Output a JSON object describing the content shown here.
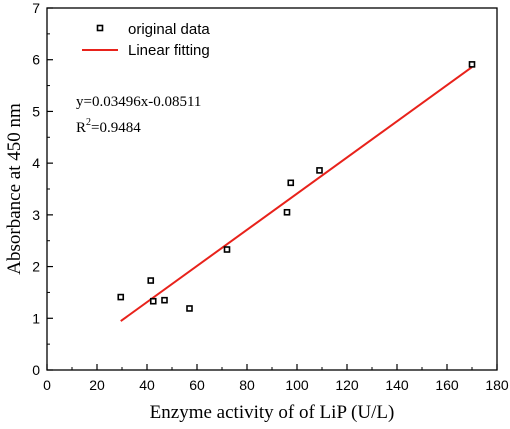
{
  "chart_data": {
    "type": "scatter",
    "xlabel": "Enzyme activity of of LiP (U/L)",
    "ylabel": "Absorbance at 450 nm",
    "xlim": [
      0,
      180
    ],
    "ylim": [
      0,
      7
    ],
    "xticks": [
      0,
      20,
      40,
      60,
      80,
      100,
      120,
      140,
      160,
      180
    ],
    "yticks": [
      0,
      1,
      2,
      3,
      4,
      5,
      6,
      7
    ],
    "grid": false,
    "legend_position": "top-left",
    "series": [
      {
        "name": "original data",
        "type": "scatter",
        "marker": "square",
        "color": "#000000",
        "x": [
          29.5,
          41.5,
          42.5,
          47,
          57,
          72,
          96,
          97.5,
          109,
          170
        ],
        "y": [
          1.41,
          1.73,
          1.33,
          1.35,
          1.19,
          2.33,
          3.05,
          3.62,
          3.86,
          5.91
        ]
      },
      {
        "name": "Linear fitting",
        "type": "line",
        "color": "#e8221b",
        "x": [
          29.5,
          170
        ],
        "y": [
          0.946,
          5.858
        ]
      }
    ],
    "annotations": {
      "equation": "y=0.03496x-0.08511",
      "r2_prefix": "R",
      "r2_sup": "2",
      "r2_value": "=0.9484"
    }
  }
}
